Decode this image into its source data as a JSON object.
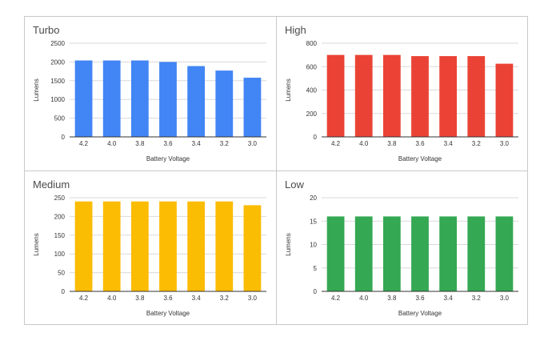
{
  "chart_data": [
    {
      "type": "bar",
      "title": "Turbo",
      "xlabel": "Battery Voltage",
      "ylabel": "Lumens",
      "categories": [
        "4.2",
        "4.0",
        "3.8",
        "3.6",
        "3.4",
        "3.2",
        "3.0"
      ],
      "values": [
        2040,
        2040,
        2040,
        2000,
        1890,
        1770,
        1580
      ],
      "ylim": [
        0,
        2500
      ],
      "yticks": [
        0,
        500,
        1000,
        1500,
        2000,
        2500
      ],
      "color": "#4285f4",
      "grid": true
    },
    {
      "type": "bar",
      "title": "High",
      "xlabel": "Battery Voltage",
      "ylabel": "Lumens",
      "categories": [
        "4.2",
        "4.0",
        "3.8",
        "3.6",
        "3.4",
        "3.2",
        "3.0"
      ],
      "values": [
        700,
        700,
        700,
        690,
        690,
        690,
        625
      ],
      "ylim": [
        0,
        800
      ],
      "yticks": [
        0,
        200,
        400,
        600,
        800
      ],
      "color": "#ea4335",
      "grid": true
    },
    {
      "type": "bar",
      "title": "Medium",
      "xlabel": "Battery Voltage",
      "ylabel": "Lumens",
      "categories": [
        "4.2",
        "4.0",
        "3.8",
        "3.6",
        "3.4",
        "3.2",
        "3.0"
      ],
      "values": [
        240,
        240,
        240,
        240,
        240,
        240,
        230
      ],
      "ylim": [
        0,
        250
      ],
      "yticks": [
        0,
        50,
        100,
        150,
        200,
        250
      ],
      "color": "#fbbc04",
      "grid": true
    },
    {
      "type": "bar",
      "title": "Low",
      "xlabel": "Battery Voltage",
      "ylabel": "Lumens",
      "categories": [
        "4.2",
        "4.0",
        "3.8",
        "3.6",
        "3.4",
        "3.2",
        "3.0"
      ],
      "values": [
        16,
        16,
        16,
        16,
        16,
        16,
        16
      ],
      "ylim": [
        0,
        20
      ],
      "yticks": [
        0,
        5,
        10,
        15,
        20
      ],
      "color": "#34a853",
      "grid": true
    }
  ]
}
